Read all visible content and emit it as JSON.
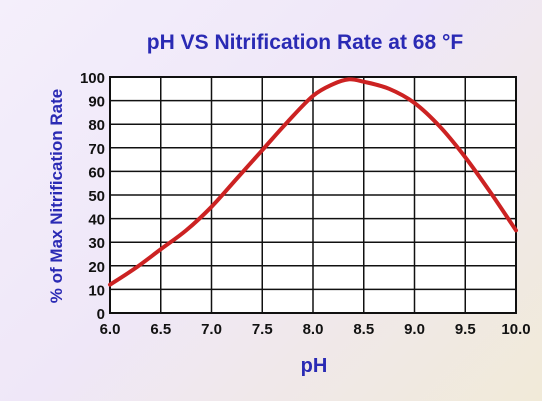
{
  "chart_data": {
    "type": "line",
    "title": "pH VS Nitrification Rate at 68 °F",
    "xlabel": "pH",
    "ylabel": "% of Max Nitrification Rate",
    "xlim": [
      6.0,
      10.0
    ],
    "ylim": [
      0,
      100
    ],
    "x_ticks": [
      "6.0",
      "6.5",
      "7.0",
      "7.5",
      "8.0",
      "8.5",
      "9.0",
      "9.5",
      "10.0"
    ],
    "y_ticks": [
      "0",
      "10",
      "20",
      "30",
      "40",
      "50",
      "60",
      "70",
      "80",
      "90",
      "100"
    ],
    "grid": true,
    "series": [
      {
        "color": "#cc2222",
        "x": [
          6.0,
          6.25,
          6.5,
          6.75,
          7.0,
          7.25,
          7.5,
          7.75,
          8.0,
          8.2,
          8.35,
          8.5,
          8.75,
          9.0,
          9.25,
          9.5,
          9.75,
          10.0
        ],
        "y": [
          12,
          19,
          27,
          35,
          45,
          57,
          69,
          81,
          92,
          97,
          99,
          98,
          95,
          89,
          79,
          66,
          51,
          35
        ]
      }
    ],
    "colors": {
      "title": "#2a2ab4",
      "axis_label": "#2a2ab4",
      "tick": "#111111",
      "grid": "#111111",
      "plot_bg": "#ffffff",
      "line": "#cc2222"
    }
  }
}
